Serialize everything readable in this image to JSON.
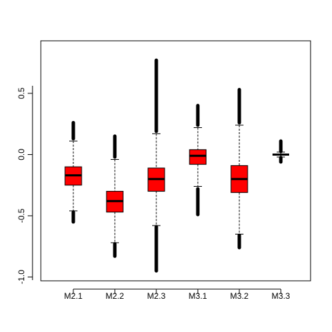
{
  "chart_data": {
    "type": "box",
    "title": "",
    "xlabel": "",
    "ylabel": "",
    "categories": [
      "M2.1",
      "M2.2",
      "M2.3",
      "M3.1",
      "M3.2",
      "M3.3"
    ],
    "ylim": [
      -1.02,
      0.85
    ],
    "yticks": [
      -1.0,
      -0.5,
      0.0,
      0.5
    ],
    "yticklabels": [
      "-1.0",
      "-0.5",
      "0.0",
      "0.5"
    ],
    "box_fill": "#ff0000",
    "grid": false,
    "boxes": [
      {
        "name": "M2.1",
        "q1": -0.25,
        "median": -0.17,
        "q3": -0.1,
        "whisker_low": -0.46,
        "whisker_high": 0.11,
        "outlier_low_max": -0.47,
        "outlier_low_min": -0.55,
        "outlier_high_min": 0.13,
        "outlier_high_max": 0.26
      },
      {
        "name": "M2.2",
        "q1": -0.47,
        "median": -0.38,
        "q3": -0.3,
        "whisker_low": -0.72,
        "whisker_high": -0.04,
        "outlier_low_max": -0.73,
        "outlier_low_min": -0.83,
        "outlier_high_min": -0.02,
        "outlier_high_max": 0.15
      },
      {
        "name": "M2.3",
        "q1": -0.3,
        "median": -0.2,
        "q3": -0.11,
        "whisker_low": -0.58,
        "whisker_high": 0.17,
        "outlier_low_max": -0.59,
        "outlier_low_min": -0.95,
        "outlier_high_min": 0.19,
        "outlier_high_max": 0.77
      },
      {
        "name": "M3.1",
        "q1": -0.08,
        "median": -0.01,
        "q3": 0.04,
        "whisker_low": -0.26,
        "whisker_high": 0.22,
        "outlier_low_max": -0.28,
        "outlier_low_min": -0.49,
        "outlier_high_min": 0.24,
        "outlier_high_max": 0.4
      },
      {
        "name": "M3.2",
        "q1": -0.31,
        "median": -0.2,
        "q3": -0.09,
        "whisker_low": -0.65,
        "whisker_high": 0.24,
        "outlier_low_max": -0.66,
        "outlier_low_min": -0.76,
        "outlier_high_min": 0.26,
        "outlier_high_max": 0.53
      },
      {
        "name": "M3.3",
        "q1": -0.005,
        "median": 0.0,
        "q3": 0.005,
        "whisker_low": -0.02,
        "whisker_high": 0.02,
        "outlier_low_max": -0.025,
        "outlier_low_min": -0.06,
        "outlier_high_min": 0.025,
        "outlier_high_max": 0.11
      }
    ]
  }
}
